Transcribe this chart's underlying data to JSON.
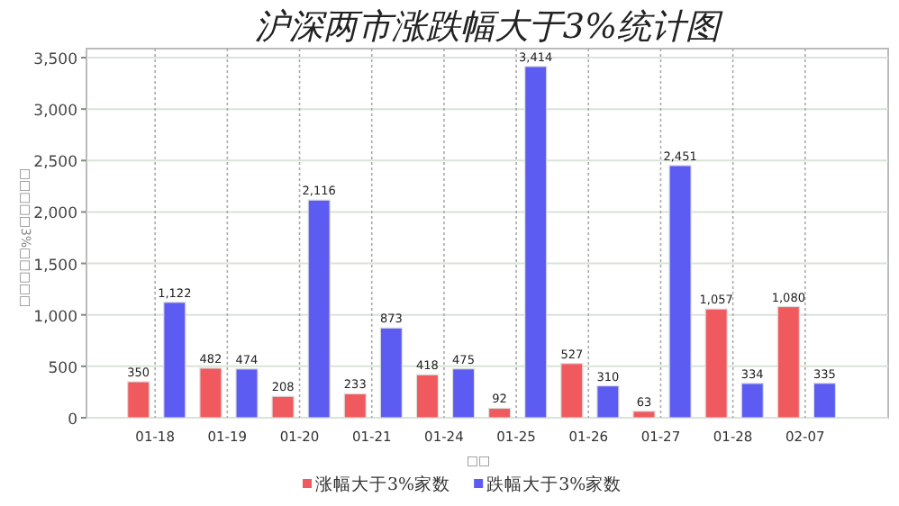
{
  "chart_data": {
    "type": "bar",
    "title": "沪深两市涨跌幅大于3%统计图",
    "xlabel": "□□",
    "ylabel": "□□□□□3%□□□□□",
    "categories": [
      "01-18",
      "01-19",
      "01-20",
      "01-21",
      "01-24",
      "01-25",
      "01-26",
      "01-27",
      "01-28",
      "02-07"
    ],
    "series": [
      {
        "name": "涨幅大于3%家数",
        "color": "#f05a5e",
        "values": [
          350,
          482,
          208,
          233,
          418,
          92,
          527,
          63,
          1057,
          1080
        ],
        "value_labels": [
          "350",
          "482",
          "208",
          "233",
          "418",
          "92",
          "527",
          "63",
          "1,057",
          "1,080"
        ]
      },
      {
        "name": "跌幅大于3%家数",
        "color": "#5c5cf2",
        "values": [
          1122,
          474,
          2116,
          873,
          475,
          3414,
          310,
          2451,
          334,
          335
        ],
        "value_labels": [
          "1,122",
          "474",
          "2,116",
          "873",
          "475",
          "3,414",
          "310",
          "2,451",
          "334",
          "335"
        ]
      }
    ],
    "ylim": [
      0,
      3500
    ],
    "yticks": [
      0,
      500,
      {
        "value": 1000,
        "label": "1,000"
      },
      {
        "value": 1500,
        "label": "1,500"
      },
      {
        "value": 2000,
        "label": "2,000"
      },
      {
        "value": 2500,
        "label": "2,500"
      },
      {
        "value": 3000,
        "label": "3,000"
      },
      {
        "value": 3500,
        "label": "3,500"
      }
    ],
    "grid": true,
    "legend": "bottom"
  }
}
